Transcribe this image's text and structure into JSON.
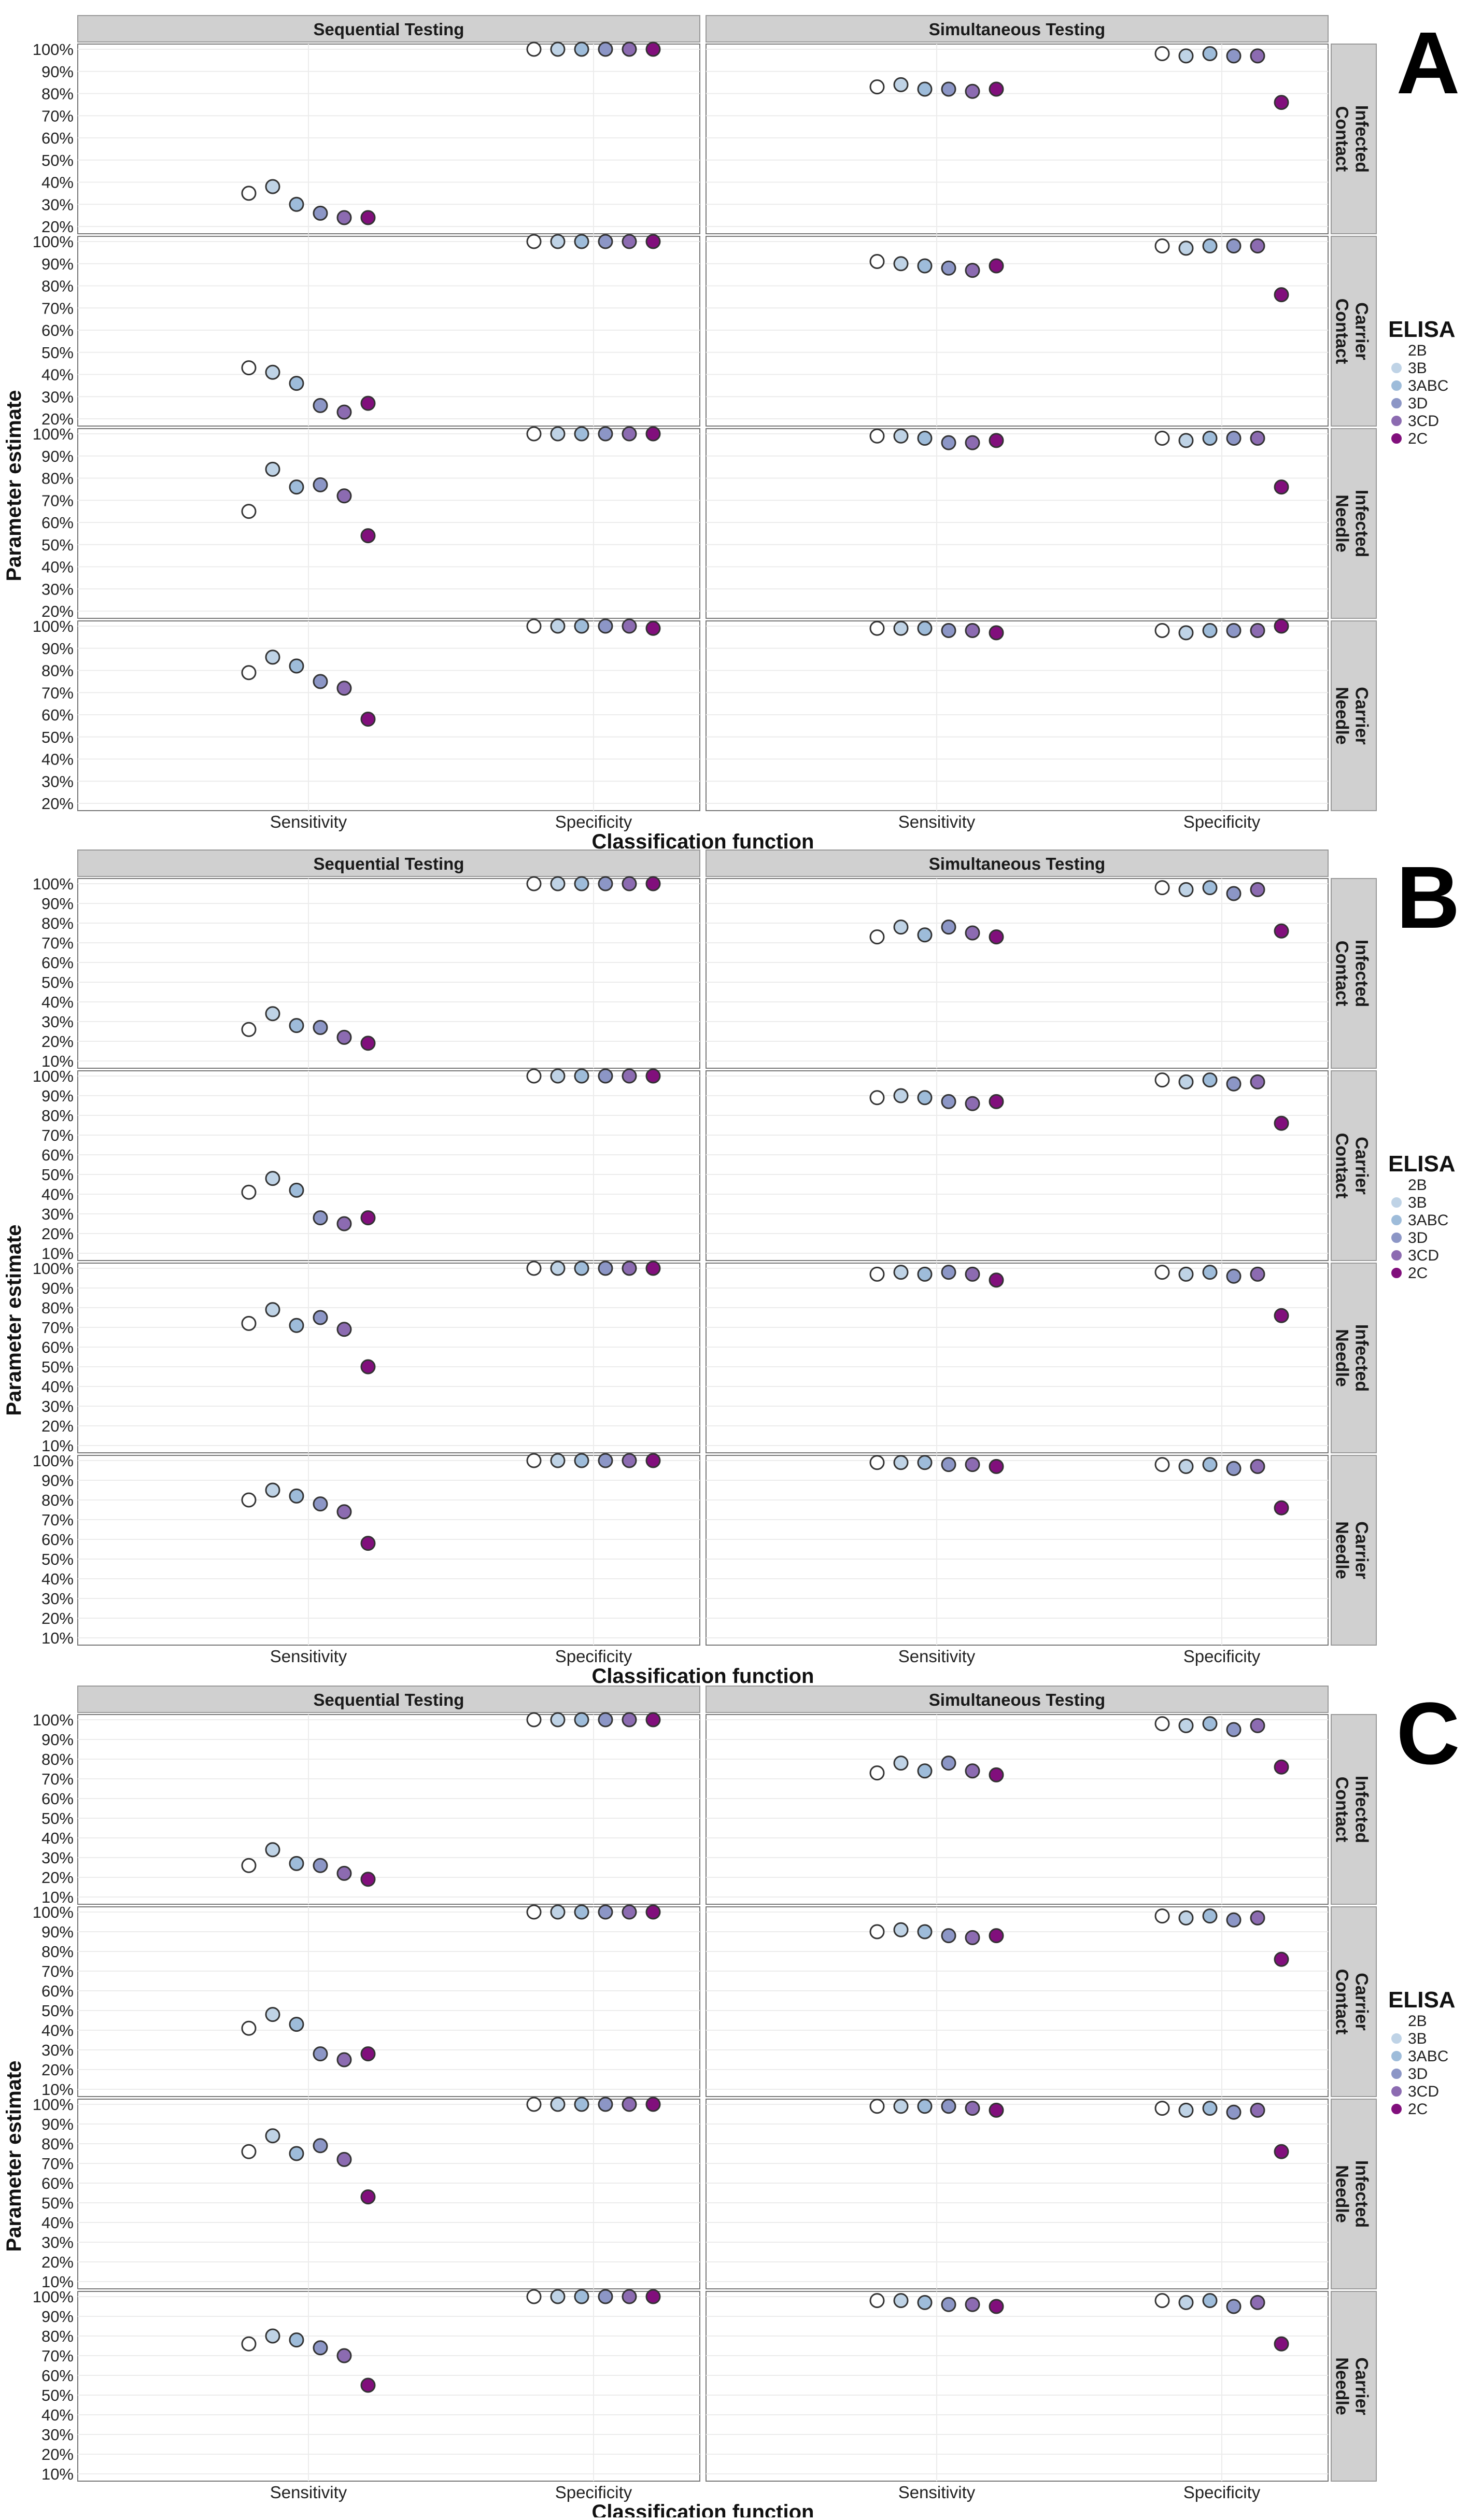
{
  "figure": {
    "legend_title": "ELISA",
    "legend_items": [
      {
        "label": "2B",
        "color": "#ffffff"
      },
      {
        "label": "3B",
        "color": "#bfd3e6"
      },
      {
        "label": "3ABC",
        "color": "#9ebcda"
      },
      {
        "label": "3D",
        "color": "#8c96c6"
      },
      {
        "label": "3CD",
        "color": "#8c6bb1"
      },
      {
        "label": "2C",
        "color": "#810f7c"
      }
    ],
    "column_strips": [
      "Sequential Testing",
      "Simultaneous Testing"
    ],
    "row_strips": [
      [
        "Infected",
        "Contact"
      ],
      [
        "Carrier",
        "Contact"
      ],
      [
        "Infected",
        "Needle"
      ],
      [
        "Carrier",
        "Needle"
      ]
    ],
    "x_ticks": [
      "Sensitivity",
      "Specificity"
    ],
    "xlabel": "Classification function",
    "ylabel": "Parameter estimate",
    "panel_letters": [
      "A",
      "B",
      "C"
    ]
  },
  "chart_data": [
    {
      "type": "scatter",
      "panel": "A",
      "series_order": [
        "2B",
        "3B",
        "3ABC",
        "3D",
        "3CD",
        "2C"
      ],
      "ylim": [
        0.2,
        1.0
      ],
      "y_ticks": [
        "20%",
        "30%",
        "40%",
        "50%",
        "60%",
        "70%",
        "80%",
        "90%",
        "100%"
      ],
      "grid": true,
      "legend_position": "right",
      "facets": [
        {
          "row": "Infected Contact",
          "col": "Sequential Testing",
          "sensitivity": [
            0.35,
            0.38,
            0.3,
            0.26,
            0.24,
            0.24
          ],
          "specificity": [
            1.0,
            1.0,
            1.0,
            1.0,
            1.0,
            1.0
          ]
        },
        {
          "row": "Infected Contact",
          "col": "Simultaneous Testing",
          "sensitivity": [
            0.83,
            0.84,
            0.82,
            0.82,
            0.81,
            0.82
          ],
          "specificity": [
            0.98,
            0.97,
            0.98,
            0.97,
            0.97,
            0.76
          ]
        },
        {
          "row": "Carrier Contact",
          "col": "Sequential Testing",
          "sensitivity": [
            0.43,
            0.41,
            0.36,
            0.26,
            0.23,
            0.27
          ],
          "specificity": [
            1.0,
            1.0,
            1.0,
            1.0,
            1.0,
            1.0
          ]
        },
        {
          "row": "Carrier Contact",
          "col": "Simultaneous Testing",
          "sensitivity": [
            0.91,
            0.9,
            0.89,
            0.88,
            0.87,
            0.89
          ],
          "specificity": [
            0.98,
            0.97,
            0.98,
            0.98,
            0.98,
            0.76
          ]
        },
        {
          "row": "Infected Needle",
          "col": "Sequential Testing",
          "sensitivity": [
            0.65,
            0.84,
            0.76,
            0.77,
            0.72,
            0.54
          ],
          "specificity": [
            1.0,
            1.0,
            1.0,
            1.0,
            1.0,
            1.0
          ]
        },
        {
          "row": "Infected Needle",
          "col": "Simultaneous Testing",
          "sensitivity": [
            0.99,
            0.99,
            0.98,
            0.96,
            0.96,
            0.97
          ],
          "specificity": [
            0.98,
            0.97,
            0.98,
            0.98,
            0.98,
            0.76
          ]
        },
        {
          "row": "Carrier Needle",
          "col": "Sequential Testing",
          "sensitivity": [
            0.79,
            0.86,
            0.82,
            0.75,
            0.72,
            0.58
          ],
          "specificity": [
            1.0,
            1.0,
            1.0,
            1.0,
            1.0,
            0.99
          ]
        },
        {
          "row": "Carrier Needle",
          "col": "Simultaneous Testing",
          "sensitivity": [
            0.99,
            0.99,
            0.99,
            0.98,
            0.98,
            0.97
          ],
          "specificity": [
            0.98,
            0.97,
            0.98,
            0.98,
            0.98,
            1.0
          ]
        }
      ]
    },
    {
      "type": "scatter",
      "panel": "B",
      "series_order": [
        "2B",
        "3B",
        "3ABC",
        "3D",
        "3CD",
        "2C"
      ],
      "ylim": [
        0.1,
        1.0
      ],
      "y_ticks": [
        "10%",
        "20%",
        "30%",
        "40%",
        "50%",
        "60%",
        "70%",
        "80%",
        "90%",
        "100%"
      ],
      "grid": true,
      "legend_position": "right",
      "facets": [
        {
          "row": "Infected Contact",
          "col": "Sequential Testing",
          "sensitivity": [
            0.26,
            0.34,
            0.28,
            0.27,
            0.22,
            0.19
          ],
          "specificity": [
            1.0,
            1.0,
            1.0,
            1.0,
            1.0,
            1.0
          ]
        },
        {
          "row": "Infected Contact",
          "col": "Simultaneous Testing",
          "sensitivity": [
            0.73,
            0.78,
            0.74,
            0.78,
            0.75,
            0.73
          ],
          "specificity": [
            0.98,
            0.97,
            0.98,
            0.95,
            0.97,
            0.76
          ]
        },
        {
          "row": "Carrier Contact",
          "col": "Sequential Testing",
          "sensitivity": [
            0.41,
            0.48,
            0.42,
            0.28,
            0.25,
            0.28
          ],
          "specificity": [
            1.0,
            1.0,
            1.0,
            1.0,
            1.0,
            1.0
          ]
        },
        {
          "row": "Carrier Contact",
          "col": "Simultaneous Testing",
          "sensitivity": [
            0.89,
            0.9,
            0.89,
            0.87,
            0.86,
            0.87
          ],
          "specificity": [
            0.98,
            0.97,
            0.98,
            0.96,
            0.97,
            0.76
          ]
        },
        {
          "row": "Infected Needle",
          "col": "Sequential Testing",
          "sensitivity": [
            0.72,
            0.79,
            0.71,
            0.75,
            0.69,
            0.5
          ],
          "specificity": [
            1.0,
            1.0,
            1.0,
            1.0,
            1.0,
            1.0
          ]
        },
        {
          "row": "Infected Needle",
          "col": "Simultaneous Testing",
          "sensitivity": [
            0.97,
            0.98,
            0.97,
            0.98,
            0.97,
            0.94
          ],
          "specificity": [
            0.98,
            0.97,
            0.98,
            0.96,
            0.97,
            0.76
          ]
        },
        {
          "row": "Carrier Needle",
          "col": "Sequential Testing",
          "sensitivity": [
            0.8,
            0.85,
            0.82,
            0.78,
            0.74,
            0.58
          ],
          "specificity": [
            1.0,
            1.0,
            1.0,
            1.0,
            1.0,
            1.0
          ]
        },
        {
          "row": "Carrier Needle",
          "col": "Simultaneous Testing",
          "sensitivity": [
            0.99,
            0.99,
            0.99,
            0.98,
            0.98,
            0.97
          ],
          "specificity": [
            0.98,
            0.97,
            0.98,
            0.96,
            0.97,
            0.76
          ]
        }
      ]
    },
    {
      "type": "scatter",
      "panel": "C",
      "series_order": [
        "2B",
        "3B",
        "3ABC",
        "3D",
        "3CD",
        "2C"
      ],
      "ylim": [
        0.1,
        1.0
      ],
      "y_ticks": [
        "10%",
        "20%",
        "30%",
        "40%",
        "50%",
        "60%",
        "70%",
        "80%",
        "90%",
        "100%"
      ],
      "grid": true,
      "legend_position": "right",
      "facets": [
        {
          "row": "Infected Contact",
          "col": "Sequential Testing",
          "sensitivity": [
            0.26,
            0.34,
            0.27,
            0.26,
            0.22,
            0.19
          ],
          "specificity": [
            1.0,
            1.0,
            1.0,
            1.0,
            1.0,
            1.0
          ]
        },
        {
          "row": "Infected Contact",
          "col": "Simultaneous Testing",
          "sensitivity": [
            0.73,
            0.78,
            0.74,
            0.78,
            0.74,
            0.72
          ],
          "specificity": [
            0.98,
            0.97,
            0.98,
            0.95,
            0.97,
            0.76
          ]
        },
        {
          "row": "Carrier Contact",
          "col": "Sequential Testing",
          "sensitivity": [
            0.41,
            0.48,
            0.43,
            0.28,
            0.25,
            0.28
          ],
          "specificity": [
            1.0,
            1.0,
            1.0,
            1.0,
            1.0,
            1.0
          ]
        },
        {
          "row": "Carrier Contact",
          "col": "Simultaneous Testing",
          "sensitivity": [
            0.9,
            0.91,
            0.9,
            0.88,
            0.87,
            0.88
          ],
          "specificity": [
            0.98,
            0.97,
            0.98,
            0.96,
            0.97,
            0.76
          ]
        },
        {
          "row": "Infected Needle",
          "col": "Sequential Testing",
          "sensitivity": [
            0.76,
            0.84,
            0.75,
            0.79,
            0.72,
            0.53
          ],
          "specificity": [
            1.0,
            1.0,
            1.0,
            1.0,
            1.0,
            1.0
          ]
        },
        {
          "row": "Infected Needle",
          "col": "Simultaneous Testing",
          "sensitivity": [
            0.99,
            0.99,
            0.99,
            0.99,
            0.98,
            0.97
          ],
          "specificity": [
            0.98,
            0.97,
            0.98,
            0.96,
            0.97,
            0.76
          ]
        },
        {
          "row": "Carrier Needle",
          "col": "Sequential Testing",
          "sensitivity": [
            0.76,
            0.8,
            0.78,
            0.74,
            0.7,
            0.55
          ],
          "specificity": [
            1.0,
            1.0,
            1.0,
            1.0,
            1.0,
            1.0
          ]
        },
        {
          "row": "Carrier Needle",
          "col": "Simultaneous Testing",
          "sensitivity": [
            0.98,
            0.98,
            0.97,
            0.96,
            0.96,
            0.95
          ],
          "specificity": [
            0.98,
            0.97,
            0.98,
            0.95,
            0.97,
            0.76
          ]
        }
      ]
    }
  ]
}
